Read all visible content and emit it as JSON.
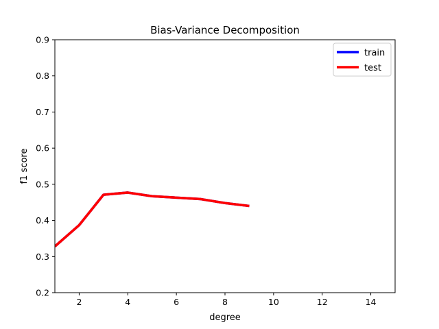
{
  "chart_data": {
    "type": "line",
    "title": "Bias-Variance Decomposition",
    "xlabel": "degree",
    "ylabel": "f1 score",
    "xlim": [
      1,
      15
    ],
    "ylim": [
      0.2,
      0.9
    ],
    "x_ticks": [
      "2",
      "4",
      "6",
      "8",
      "10",
      "12",
      "14"
    ],
    "y_ticks": [
      "0.2",
      "0.3",
      "0.4",
      "0.5",
      "0.6",
      "0.7",
      "0.8",
      "0.9"
    ],
    "grid": false,
    "legend_position": "top-right",
    "x": [
      1,
      2,
      3,
      4,
      5,
      6,
      7,
      8,
      9
    ],
    "series": [
      {
        "name": "train",
        "color": "#0000ff",
        "values": [
          0.328,
          0.387,
          0.471,
          0.477,
          0.467,
          0.463,
          0.459,
          0.448,
          0.44
        ]
      },
      {
        "name": "test",
        "color": "#ff0000",
        "values": [
          0.328,
          0.387,
          0.471,
          0.477,
          0.467,
          0.463,
          0.459,
          0.448,
          0.44
        ]
      }
    ]
  }
}
